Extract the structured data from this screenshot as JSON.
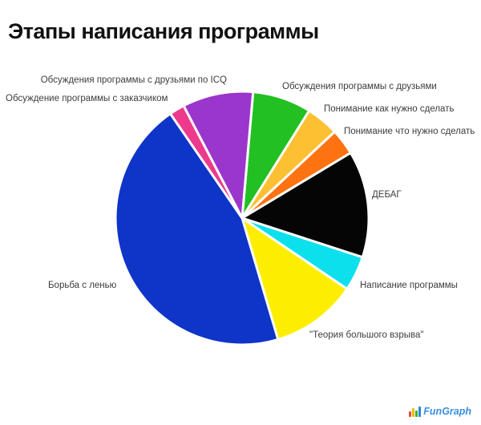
{
  "title": "Этапы написания программы",
  "watermark": {
    "text": "FunGraph"
  },
  "chart_data": {
    "type": "pie",
    "title": "Этапы написания программы",
    "legend_position": "none",
    "label_placement": "around-pie",
    "background": "#ffffff",
    "separator_color": "#ffffff",
    "slices": [
      {
        "label": "Обсуждения программы с друзьями",
        "color": "#22c022",
        "percent": 7.5,
        "start_angle": 5,
        "end_angle": 32
      },
      {
        "label": "Понимание как нужно сделать",
        "color": "#fdc032",
        "percent": 4.2,
        "start_angle": 32,
        "end_angle": 47
      },
      {
        "label": "Понимание что нужно сделать",
        "color": "#fd7211",
        "percent": 3.3,
        "start_angle": 47,
        "end_angle": 59
      },
      {
        "label": "ДЕБАГ",
        "color": "#050505",
        "percent": 13.6,
        "start_angle": 59,
        "end_angle": 108
      },
      {
        "label": "Написание программы",
        "color": "#0ce0ec",
        "percent": 4.4,
        "start_angle": 108,
        "end_angle": 124
      },
      {
        "label": "\"Теория большого взрыва\"",
        "color": "#fdee00",
        "percent": 11.0,
        "start_angle": 124,
        "end_angle": 163.5
      },
      {
        "label": "Борьба с ленью",
        "color": "#0f34c8",
        "percent": 45.0,
        "start_angle": 163.5,
        "end_angle": 325.5
      },
      {
        "label": "Обсуждение программы с заказчиком",
        "color": "#ee3a8c",
        "percent": 1.9,
        "start_angle": 325.5,
        "end_angle": 332.5
      },
      {
        "label": "Обсуждения программы с друзьями по ICQ",
        "color": "#9a36cc",
        "percent": 9.1,
        "start_angle": 332.5,
        "end_angle": 365
      }
    ]
  }
}
